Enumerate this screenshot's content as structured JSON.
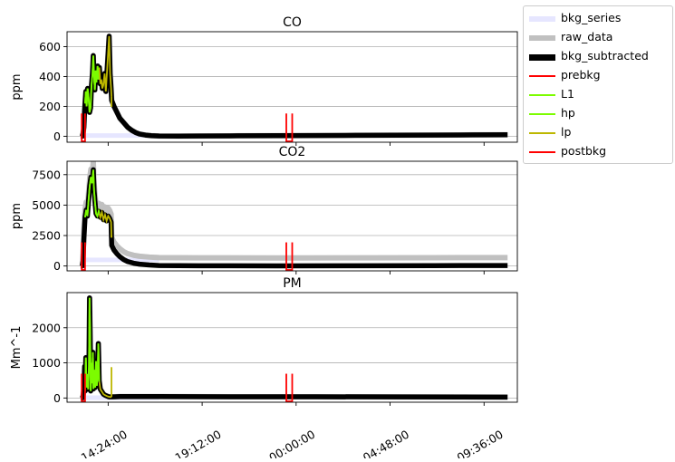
{
  "chart_data": [
    {
      "type": "line",
      "title": "CO",
      "ylabel": "ppm",
      "ylim": [
        -40,
        700
      ],
      "yticks": [
        0,
        200,
        400,
        600
      ],
      "ytick_labels": [
        "0",
        "200",
        "400",
        "600"
      ],
      "grid": "y",
      "bkg_level": 5,
      "raw_offset": 0,
      "peaks": [
        {
          "x": 0.0,
          "y": 0
        },
        {
          "x": 0.08,
          "y": 0
        },
        {
          "x": 0.12,
          "y": 20
        },
        {
          "x": 0.16,
          "y": 60
        },
        {
          "x": 0.2,
          "y": 180
        },
        {
          "x": 0.26,
          "y": 300
        },
        {
          "x": 0.3,
          "y": 200
        },
        {
          "x": 0.35,
          "y": 320
        },
        {
          "x": 0.4,
          "y": 260
        },
        {
          "x": 0.45,
          "y": 160
        },
        {
          "x": 0.5,
          "y": 190
        },
        {
          "x": 0.55,
          "y": 340
        },
        {
          "x": 0.6,
          "y": 420
        },
        {
          "x": 0.64,
          "y": 540
        },
        {
          "x": 0.68,
          "y": 400
        },
        {
          "x": 0.72,
          "y": 310
        },
        {
          "x": 0.76,
          "y": 440
        },
        {
          "x": 0.8,
          "y": 360
        },
        {
          "x": 0.86,
          "y": 470
        },
        {
          "x": 0.9,
          "y": 380
        },
        {
          "x": 0.95,
          "y": 460
        },
        {
          "x": 1.0,
          "y": 350
        },
        {
          "x": 1.05,
          "y": 380
        },
        {
          "x": 1.1,
          "y": 320
        },
        {
          "x": 1.15,
          "y": 340
        },
        {
          "x": 1.22,
          "y": 420
        },
        {
          "x": 1.28,
          "y": 300
        },
        {
          "x": 1.34,
          "y": 430
        },
        {
          "x": 1.4,
          "y": 560
        },
        {
          "x": 1.45,
          "y": 670
        },
        {
          "x": 1.5,
          "y": 420
        },
        {
          "x": 1.55,
          "y": 320
        },
        {
          "x": 1.58,
          "y": 240
        },
        {
          "x": 1.7,
          "y": 200
        },
        {
          "x": 1.85,
          "y": 160
        },
        {
          "x": 2.0,
          "y": 120
        },
        {
          "x": 2.2,
          "y": 90
        },
        {
          "x": 2.4,
          "y": 60
        },
        {
          "x": 2.6,
          "y": 40
        },
        {
          "x": 2.8,
          "y": 25
        },
        {
          "x": 3.0,
          "y": 15
        },
        {
          "x": 3.3,
          "y": 8
        },
        {
          "x": 3.6,
          "y": 4
        },
        {
          "x": 4.0,
          "y": 2
        },
        {
          "x": 5.0,
          "y": 1
        },
        {
          "x": 6.0,
          "y": 2
        },
        {
          "x": 8.0,
          "y": 3
        },
        {
          "x": 10.0,
          "y": 4
        },
        {
          "x": 12.0,
          "y": 5
        },
        {
          "x": 14.0,
          "y": 6
        },
        {
          "x": 16.0,
          "y": 7
        },
        {
          "x": 18.0,
          "y": 8
        },
        {
          "x": 20.0,
          "y": 9
        },
        {
          "x": 21.8,
          "y": 10
        }
      ]
    },
    {
      "type": "line",
      "title": "CO2",
      "ylabel": "ppm",
      "ylim": [
        -400,
        8600
      ],
      "yticks": [
        0,
        2500,
        5000,
        7500
      ],
      "ytick_labels": [
        "0",
        "2500",
        "5000",
        "7500"
      ],
      "grid": "y",
      "bkg_level": 500,
      "raw_offset": 650,
      "peaks": [
        {
          "x": 0.0,
          "y": 0
        },
        {
          "x": 0.08,
          "y": 0
        },
        {
          "x": 0.12,
          "y": 400
        },
        {
          "x": 0.16,
          "y": 2200
        },
        {
          "x": 0.22,
          "y": 4000
        },
        {
          "x": 0.28,
          "y": 4600
        },
        {
          "x": 0.34,
          "y": 4100
        },
        {
          "x": 0.4,
          "y": 5400
        },
        {
          "x": 0.46,
          "y": 6600
        },
        {
          "x": 0.52,
          "y": 7300
        },
        {
          "x": 0.58,
          "y": 6800
        },
        {
          "x": 0.64,
          "y": 7900
        },
        {
          "x": 0.68,
          "y": 6200
        },
        {
          "x": 0.72,
          "y": 5400
        },
        {
          "x": 0.78,
          "y": 4300
        },
        {
          "x": 0.85,
          "y": 4100
        },
        {
          "x": 0.92,
          "y": 4500
        },
        {
          "x": 1.0,
          "y": 4000
        },
        {
          "x": 1.08,
          "y": 4400
        },
        {
          "x": 1.16,
          "y": 3800
        },
        {
          "x": 1.24,
          "y": 4200
        },
        {
          "x": 1.32,
          "y": 3700
        },
        {
          "x": 1.4,
          "y": 4100
        },
        {
          "x": 1.48,
          "y": 3900
        },
        {
          "x": 1.55,
          "y": 3600
        },
        {
          "x": 1.58,
          "y": 1700
        },
        {
          "x": 1.7,
          "y": 1300
        },
        {
          "x": 1.85,
          "y": 1000
        },
        {
          "x": 2.0,
          "y": 760
        },
        {
          "x": 2.2,
          "y": 520
        },
        {
          "x": 2.4,
          "y": 360
        },
        {
          "x": 2.7,
          "y": 230
        },
        {
          "x": 3.0,
          "y": 150
        },
        {
          "x": 3.5,
          "y": 80
        },
        {
          "x": 4.0,
          "y": 40
        },
        {
          "x": 6.0,
          "y": 20
        },
        {
          "x": 10.0,
          "y": 10
        },
        {
          "x": 14.0,
          "y": 20
        },
        {
          "x": 18.0,
          "y": 30
        },
        {
          "x": 21.8,
          "y": 40
        }
      ]
    },
    {
      "type": "line",
      "title": "PM",
      "ylabel": "Mm^-1",
      "ylim": [
        -120,
        3000
      ],
      "yticks": [
        0,
        1000,
        2000
      ],
      "ytick_labels": [
        "0",
        "1000",
        "2000"
      ],
      "grid": "y",
      "bkg_level": 10,
      "raw_offset": 0,
      "peaks": [
        {
          "x": 0.0,
          "y": 0
        },
        {
          "x": 0.08,
          "y": 0
        },
        {
          "x": 0.12,
          "y": 60
        },
        {
          "x": 0.16,
          "y": 280
        },
        {
          "x": 0.2,
          "y": 900
        },
        {
          "x": 0.22,
          "y": 200
        },
        {
          "x": 0.26,
          "y": 1150
        },
        {
          "x": 0.3,
          "y": 300
        },
        {
          "x": 0.34,
          "y": 680
        },
        {
          "x": 0.38,
          "y": 250
        },
        {
          "x": 0.42,
          "y": 900
        },
        {
          "x": 0.45,
          "y": 2850
        },
        {
          "x": 0.48,
          "y": 1800
        },
        {
          "x": 0.51,
          "y": 200
        },
        {
          "x": 0.55,
          "y": 1000
        },
        {
          "x": 0.58,
          "y": 420
        },
        {
          "x": 0.62,
          "y": 1300
        },
        {
          "x": 0.65,
          "y": 260
        },
        {
          "x": 0.7,
          "y": 800
        },
        {
          "x": 0.74,
          "y": 300
        },
        {
          "x": 0.78,
          "y": 1050
        },
        {
          "x": 0.82,
          "y": 350
        },
        {
          "x": 0.86,
          "y": 600
        },
        {
          "x": 0.9,
          "y": 1550
        },
        {
          "x": 0.94,
          "y": 500
        },
        {
          "x": 1.0,
          "y": 250
        },
        {
          "x": 1.08,
          "y": 180
        },
        {
          "x": 1.16,
          "y": 110
        },
        {
          "x": 1.24,
          "y": 80
        },
        {
          "x": 1.32,
          "y": 60
        },
        {
          "x": 1.4,
          "y": 40
        },
        {
          "x": 1.48,
          "y": 30
        },
        {
          "x": 1.56,
          "y": 30
        },
        {
          "x": 2.0,
          "y": 40
        },
        {
          "x": 4.0,
          "y": 40
        },
        {
          "x": 8.0,
          "y": 35
        },
        {
          "x": 12.0,
          "y": 35
        },
        {
          "x": 16.0,
          "y": 30
        },
        {
          "x": 21.8,
          "y": 25
        }
      ]
    }
  ],
  "x_axis": {
    "unit": "hours after 13:00",
    "xlim": [
      -0.7,
      22.3
    ],
    "ticks": [
      1.4,
      6.2,
      11.0,
      15.8,
      20.6
    ],
    "tick_labels": [
      "14:24:00",
      "19:12:00",
      "00:00:00",
      "04:48:00",
      "09:36:00"
    ]
  },
  "phases": {
    "prebkg": [
      0.05,
      0.22
    ],
    "postbkg": [
      10.5,
      10.8
    ],
    "L1": [
      0.22,
      0.95
    ],
    "hp": [
      0.22,
      0.95
    ],
    "lp": [
      0.95,
      1.57
    ],
    "bkg_series": [
      0.05,
      4.0
    ]
  },
  "legend": {
    "placement": "outside-upper-right",
    "entries": [
      {
        "label": "bkg_series",
        "color": "#e6e6ff",
        "width": 6
      },
      {
        "label": "raw_data",
        "color": "#c0c0c0",
        "width": 6
      },
      {
        "label": "bkg_subtracted",
        "color": "#000000",
        "width": 7
      },
      {
        "label": "prebkg",
        "color": "#ff0000",
        "width": 2.2
      },
      {
        "label": "L1",
        "color": "#7cfc00",
        "width": 2.2
      },
      {
        "label": "hp",
        "color": "#7cfc00",
        "width": 2.2
      },
      {
        "label": "lp",
        "color": "#bdb700",
        "width": 2.2
      },
      {
        "label": "postbkg",
        "color": "#ff0000",
        "width": 2.2
      }
    ]
  }
}
